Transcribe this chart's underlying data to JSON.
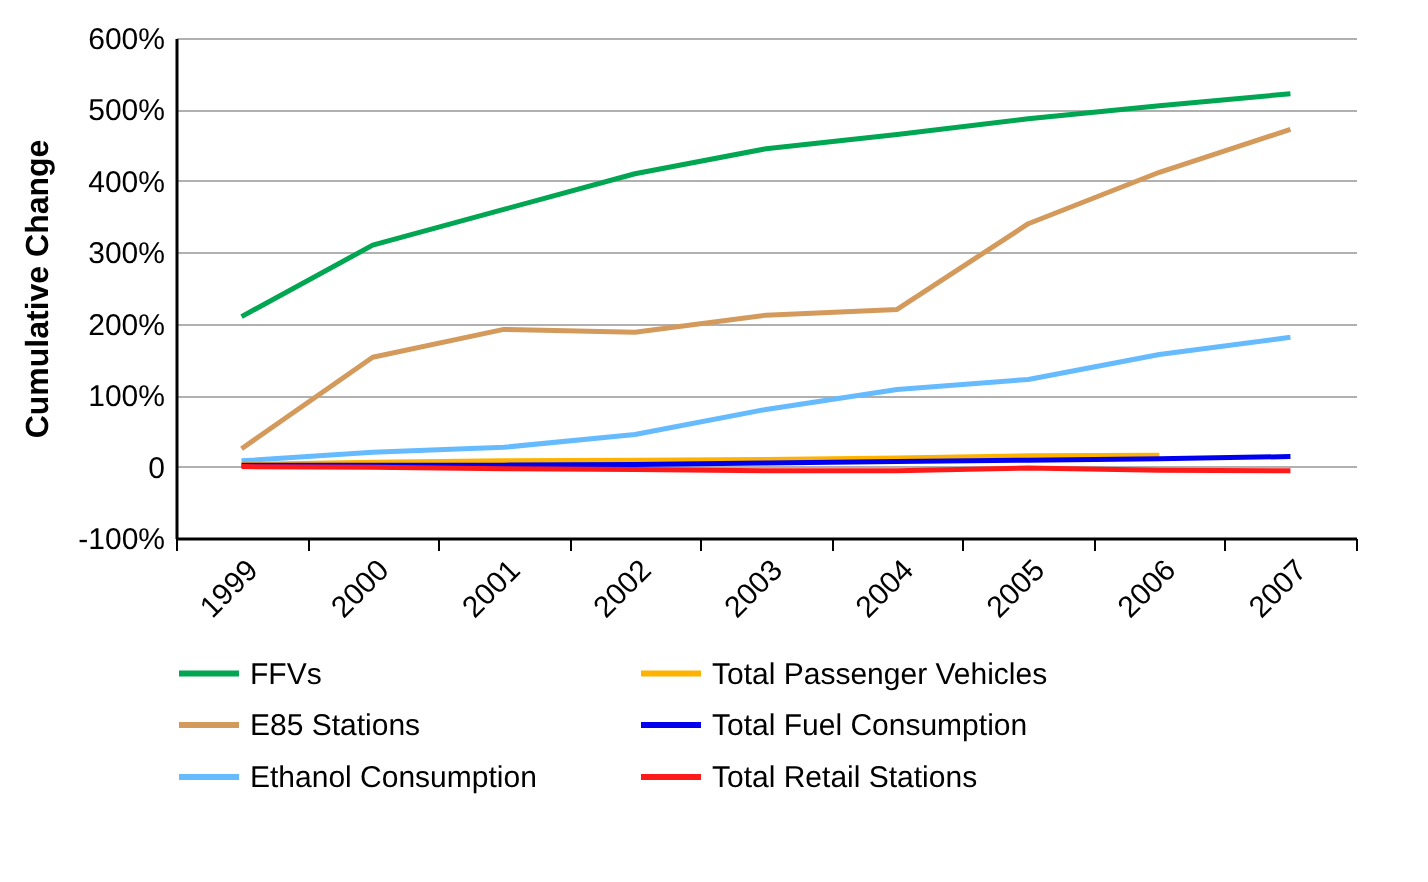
{
  "chart_data": {
    "type": "line",
    "ylabel": "Cumulative Change",
    "categories": [
      "1999",
      "2000",
      "2001",
      "2002",
      "2003",
      "2004",
      "2005",
      "2006",
      "2007"
    ],
    "series": [
      {
        "name": "FFVs",
        "color": "#00a651",
        "values": [
          210,
          310,
          360,
          410,
          445,
          465,
          487,
          505,
          522
        ]
      },
      {
        "name": "E85 Stations",
        "color": "#d49a5c",
        "values": [
          25,
          153,
          192,
          188,
          212,
          220,
          340,
          412,
          472
        ]
      },
      {
        "name": "Ethanol Consumption",
        "color": "#66bbff",
        "values": [
          8,
          20,
          27,
          45,
          80,
          108,
          122,
          157,
          181
        ]
      },
      {
        "name": "Total Passenger Vehicles",
        "color": "#ffb300",
        "values": [
          3,
          6,
          8,
          9,
          10,
          12,
          15,
          16,
          null
        ]
      },
      {
        "name": "Total Fuel Consumption",
        "color": "#0000ee",
        "values": [
          2,
          2,
          2,
          3,
          5,
          7,
          9,
          11,
          14
        ]
      },
      {
        "name": "Total Retail Stations",
        "color": "#ff1a1a",
        "values": [
          0,
          -1,
          -3,
          -4,
          -6,
          -6,
          -2,
          -5,
          -6
        ]
      }
    ],
    "ylim": [
      -100,
      600
    ],
    "yticks": [
      {
        "value": -100,
        "label": "-100%"
      },
      {
        "value": 0,
        "label": "0"
      },
      {
        "value": 100,
        "label": "100%"
      },
      {
        "value": 200,
        "label": "200%"
      },
      {
        "value": 300,
        "label": "300%"
      },
      {
        "value": 400,
        "label": "400%"
      },
      {
        "value": 500,
        "label": "500%"
      },
      {
        "value": 600,
        "label": "600%"
      }
    ],
    "grid": "y",
    "legend": "bottom",
    "marker": "none",
    "line_style": "solid"
  }
}
